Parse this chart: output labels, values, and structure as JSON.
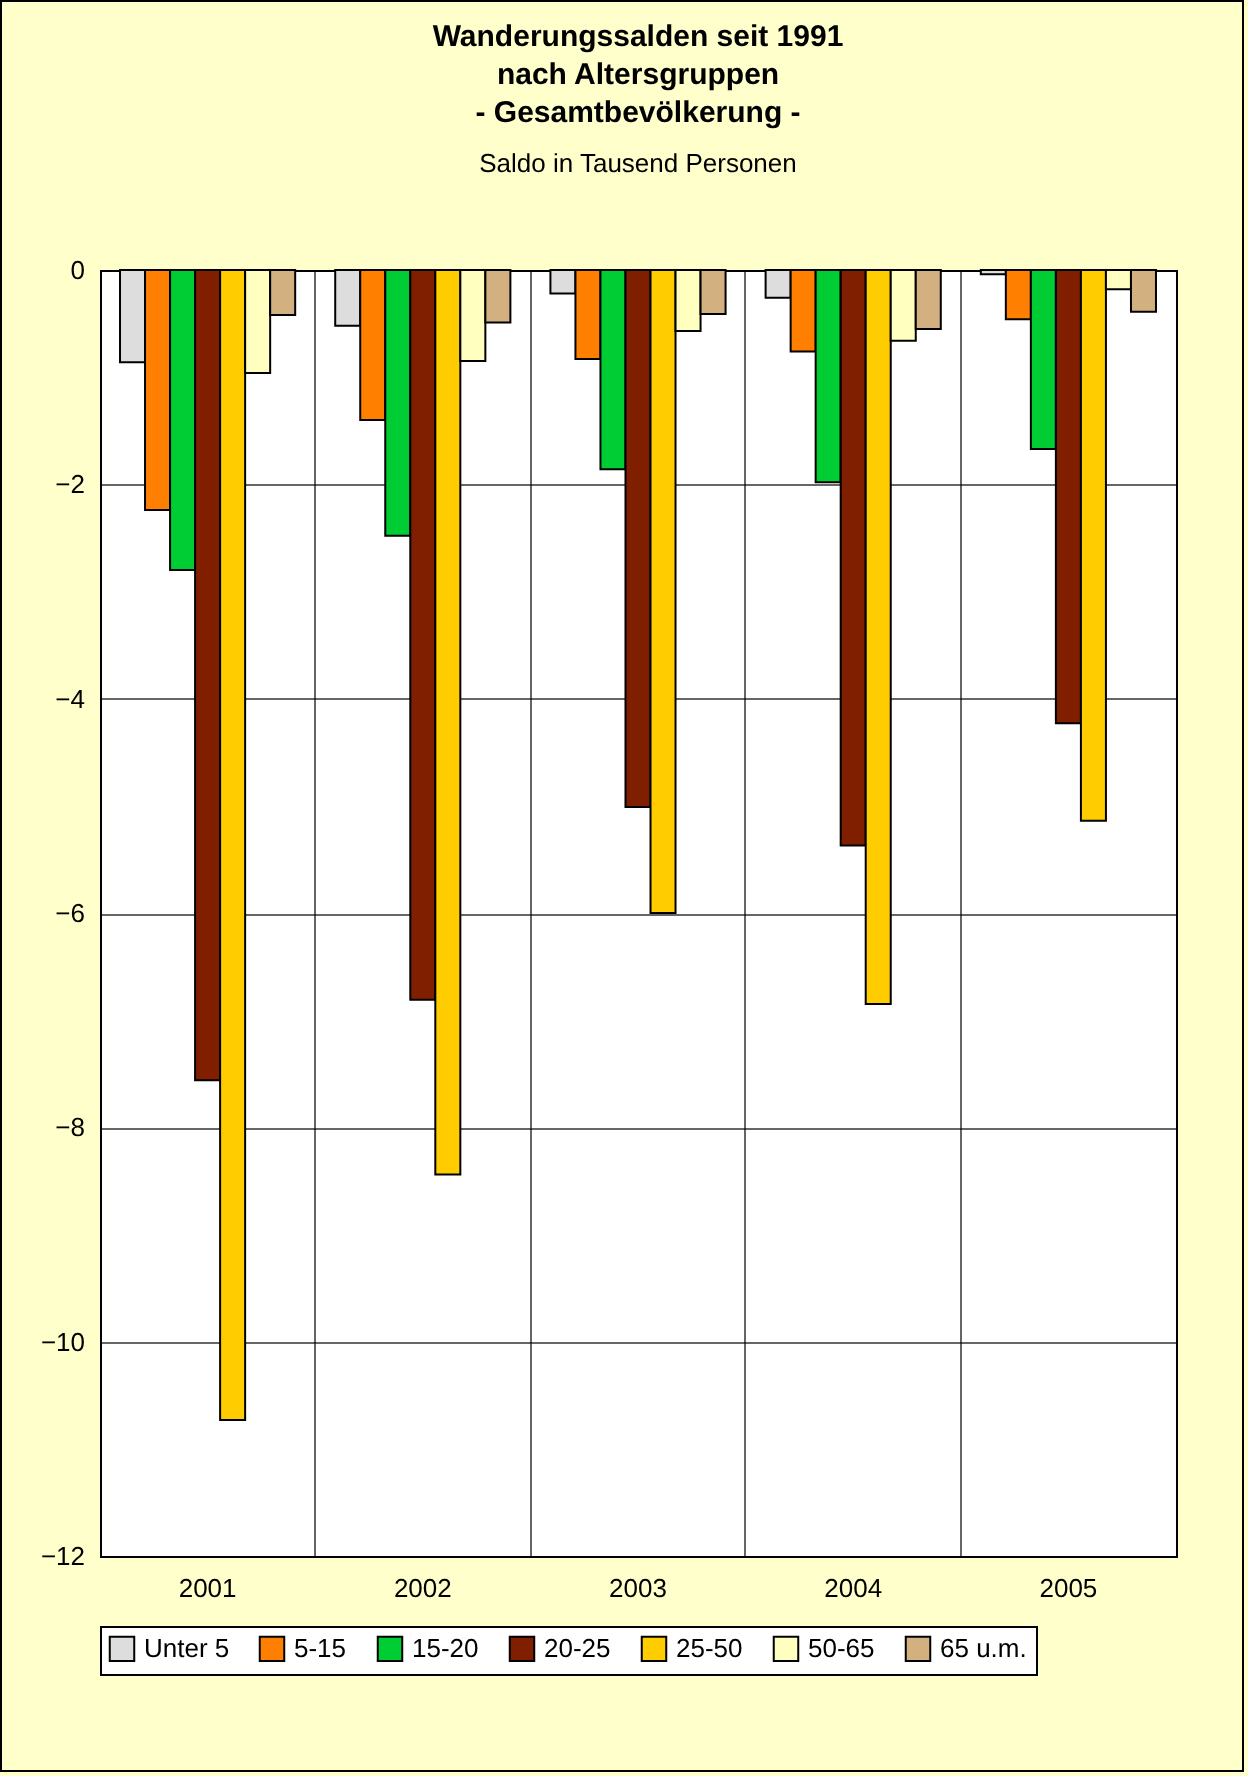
{
  "chart_data": {
    "type": "bar",
    "title": [
      "Wanderungssalden seit 1991",
      "nach Altersgruppen",
      "- Gesamtbevölkerung -"
    ],
    "ylabel": "Saldo in Tausend Personen",
    "categories": [
      "2001",
      "2002",
      "2003",
      "2004",
      "2005"
    ],
    "series": [
      {
        "name": "Unter 5",
        "color": "#dddddd",
        "values": [
          -0.86,
          -0.52,
          -0.22,
          -0.26,
          -0.04
        ]
      },
      {
        "name": "5-15",
        "color": "#ff8000",
        "values": [
          -2.24,
          -1.4,
          -0.83,
          -0.76,
          -0.46
        ]
      },
      {
        "name": "15-20",
        "color": "#00cc33",
        "values": [
          -2.8,
          -2.48,
          -1.86,
          -1.98,
          -1.67
        ]
      },
      {
        "name": "20-25",
        "color": "#7f1f00",
        "values": [
          -7.56,
          -6.81,
          -5.01,
          -5.37,
          -4.23
        ]
      },
      {
        "name": "25-50",
        "color": "#ffcc00",
        "values": [
          -10.73,
          -8.44,
          -6.0,
          -6.85,
          -5.14
        ]
      },
      {
        "name": "50-65",
        "color": "#ffffc0",
        "values": [
          -0.96,
          -0.85,
          -0.57,
          -0.66,
          -0.18
        ]
      },
      {
        "name": "65 u.m.",
        "color": "#d2b07f",
        "values": [
          -0.42,
          -0.49,
          -0.41,
          -0.55,
          -0.39
        ]
      }
    ],
    "ylim": [
      -12,
      0
    ],
    "yticks": [
      -12,
      -10,
      -8,
      -6,
      -4,
      -2,
      0
    ],
    "grid": true,
    "legend": "bottom"
  }
}
